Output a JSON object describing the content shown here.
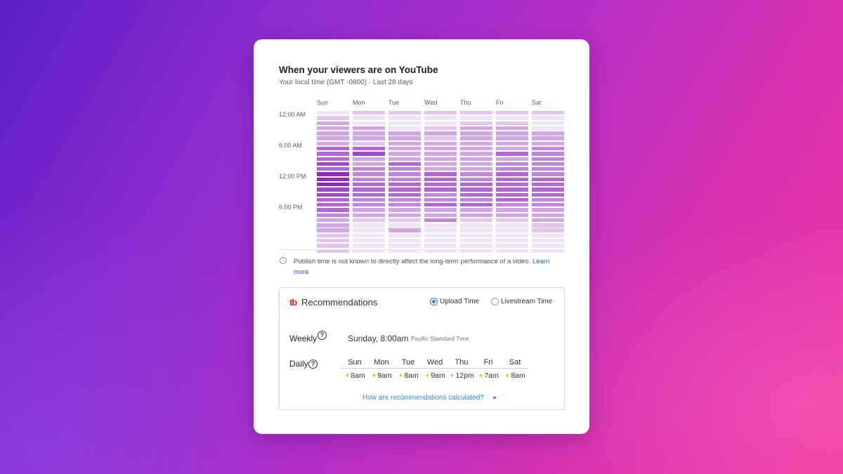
{
  "card": {
    "title": "When your viewers are on YouTube",
    "subtitle": "Your local time (GMT -0800) · Last 28 days"
  },
  "heatmap": {
    "days": [
      "Sun",
      "Mon",
      "Tue",
      "Wed",
      "Thu",
      "Fri",
      "Sat"
    ],
    "time_labels": [
      "12:00 AM",
      "6:00 AM",
      "12:00 PM",
      "6:00 PM"
    ],
    "low_color": "#f1e4f6",
    "high_color": "#8e2cbd",
    "levels": [
      [
        1,
        2,
        2,
        2,
        2,
        2,
        2
      ],
      [
        2,
        1,
        1,
        1,
        1,
        1,
        1
      ],
      [
        3,
        1,
        1,
        1,
        2,
        2,
        1
      ],
      [
        3,
        3,
        1,
        2,
        3,
        3,
        1
      ],
      [
        3,
        3,
        3,
        3,
        3,
        3,
        3
      ],
      [
        3,
        3,
        3,
        2,
        3,
        3,
        3
      ],
      [
        3,
        2,
        3,
        3,
        3,
        3,
        3
      ],
      [
        5,
        5,
        3,
        3,
        3,
        3,
        4
      ],
      [
        5,
        6,
        3,
        3,
        3,
        5,
        4
      ],
      [
        5,
        3,
        3,
        3,
        3,
        3,
        4
      ],
      [
        6,
        3,
        5,
        3,
        3,
        4,
        4
      ],
      [
        5,
        4,
        4,
        3,
        3,
        4,
        4
      ],
      [
        7,
        4,
        4,
        5,
        4,
        5,
        4
      ],
      [
        7,
        4,
        4,
        5,
        4,
        5,
        5
      ],
      [
        7,
        5,
        5,
        5,
        5,
        5,
        5
      ],
      [
        6,
        5,
        5,
        5,
        5,
        5,
        5
      ],
      [
        6,
        5,
        5,
        4,
        5,
        5,
        5
      ],
      [
        5,
        4,
        4,
        4,
        4,
        5,
        4
      ],
      [
        5,
        4,
        4,
        5,
        5,
        4,
        4
      ],
      [
        5,
        3,
        3,
        3,
        3,
        3,
        3
      ],
      [
        4,
        3,
        3,
        3,
        3,
        3,
        3
      ],
      [
        3,
        2,
        2,
        4,
        2,
        2,
        3
      ],
      [
        3,
        1,
        1,
        1,
        1,
        1,
        2
      ],
      [
        3,
        1,
        3,
        1,
        1,
        1,
        2
      ],
      [
        2,
        1,
        1,
        1,
        1,
        1,
        1
      ],
      [
        2,
        1,
        1,
        1,
        1,
        1,
        1
      ],
      [
        2,
        1,
        1,
        1,
        1,
        1,
        1
      ],
      [
        2,
        1,
        1,
        1,
        1,
        1,
        1
      ]
    ]
  },
  "info": {
    "text": "Publish time is not known to directly affect the long-term performance of a video. ",
    "link": "Learn more"
  },
  "recommendations": {
    "logo": "tb",
    "title": "Recommendations",
    "upload_label": "Upload Time",
    "livestream_label": "Livestream Time",
    "weekly_label": "Weekly",
    "weekly_value": "Sunday, 8:00am",
    "weekly_timezone": "Pacific Standard Time",
    "daily_label": "Daily",
    "daily": [
      {
        "day": "Sun",
        "time": "8am"
      },
      {
        "day": "Mon",
        "time": "9am"
      },
      {
        "day": "Tue",
        "time": "8am"
      },
      {
        "day": "Wed",
        "time": "9am"
      },
      {
        "day": "Thu",
        "time": "12pm"
      },
      {
        "day": "Fri",
        "time": "7am"
      },
      {
        "day": "Sat",
        "time": "8am"
      }
    ],
    "how_link": "How are recommendations calculated?",
    "help_glyph": "?",
    "sun_glyph": "☀",
    "info_glyph": "i"
  }
}
